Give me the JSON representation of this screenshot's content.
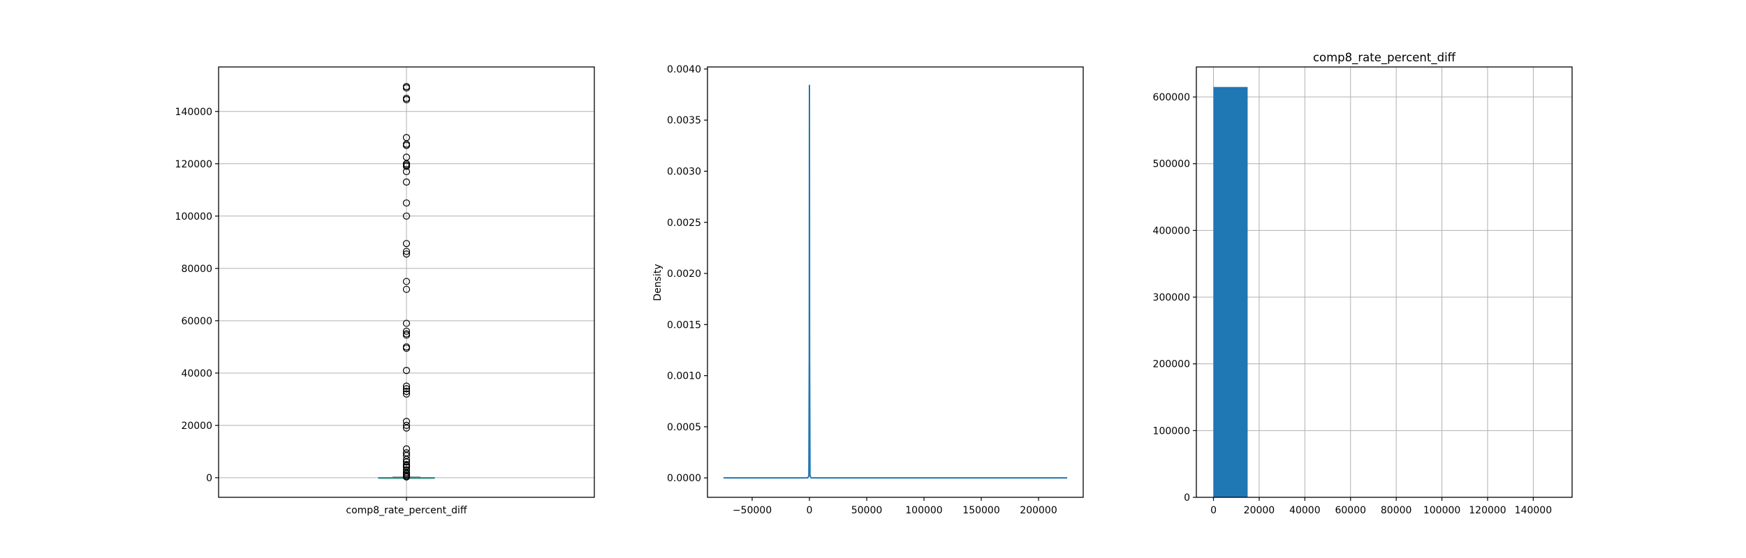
{
  "chart_data": [
    {
      "type": "box",
      "title": "",
      "xlabel": "",
      "ylabel": "",
      "categories": [
        "comp8_rate_percent_diff"
      ],
      "ylim": [
        -7500,
        157000
      ],
      "yticks": [
        0,
        20000,
        40000,
        60000,
        80000,
        100000,
        120000,
        140000
      ],
      "ytick_labels": [
        "0",
        "20000",
        "40000",
        "60000",
        "80000",
        "100000",
        "120000",
        "140000"
      ],
      "grid": true,
      "box": {
        "q1": -20,
        "median": 0,
        "q3": 20,
        "whisker_low": -180,
        "whisker_high": 180
      },
      "outliers": [
        149500,
        149000,
        145000,
        144500,
        130000,
        127500,
        127000,
        122500,
        120000,
        119500,
        119000,
        117000,
        113000,
        105000,
        100000,
        89500,
        86500,
        85500,
        75000,
        72000,
        59000,
        56000,
        55000,
        54500,
        50000,
        49500,
        41000,
        35000,
        34000,
        33000,
        32000,
        21500,
        20000,
        19000,
        11000,
        9500,
        8500,
        7000,
        6000,
        5000,
        4500,
        4000,
        3000,
        2000,
        1500,
        1000,
        500,
        300
      ],
      "colors": {
        "median": "#2ca02c",
        "box": "#1f77b4",
        "outlier": "#000000"
      }
    },
    {
      "type": "line",
      "title": "",
      "xlabel": "",
      "ylabel": "Density",
      "xlim": [
        -89000,
        239000
      ],
      "ylim": [
        -0.00019,
        0.00402
      ],
      "xticks": [
        -50000,
        0,
        50000,
        100000,
        150000,
        200000
      ],
      "xtick_labels": [
        "−50000",
        "0",
        "50000",
        "100000",
        "150000",
        "200000"
      ],
      "yticks": [
        0.0,
        0.0005,
        0.001,
        0.0015,
        0.002,
        0.0025,
        0.003,
        0.0035,
        0.004
      ],
      "ytick_labels": [
        "0.0000",
        "0.0005",
        "0.0010",
        "0.0015",
        "0.0020",
        "0.0025",
        "0.0030",
        "0.0035",
        "0.0040"
      ],
      "grid": false,
      "series": [
        {
          "x": [
            -75000,
            -1500,
            -500,
            -150,
            0,
            150,
            500,
            1500,
            225000
          ],
          "y": [
            0.0,
            0.0,
            2e-05,
            0.0012,
            0.00384,
            0.0012,
            2e-05,
            0.0,
            0.0
          ],
          "color": "#1f77b4"
        }
      ]
    },
    {
      "type": "bar",
      "title": "comp8_rate_percent_diff",
      "xlabel": "",
      "ylabel": "",
      "xlim": [
        -7500,
        157000
      ],
      "ylim": [
        0,
        645000
      ],
      "xticks": [
        0,
        20000,
        40000,
        60000,
        80000,
        100000,
        120000,
        140000
      ],
      "xtick_labels": [
        "0",
        "20000",
        "40000",
        "60000",
        "80000",
        "100000",
        "120000",
        "140000"
      ],
      "yticks": [
        0,
        100000,
        200000,
        300000,
        400000,
        500000,
        600000
      ],
      "ytick_labels": [
        "0",
        "100000",
        "200000",
        "300000",
        "400000",
        "500000",
        "600000"
      ],
      "grid": true,
      "bins": [
        {
          "x0": 0,
          "x1": 14950,
          "count": 615000
        },
        {
          "x0": 14950,
          "x1": 29900,
          "count": 3
        },
        {
          "x0": 29900,
          "x1": 44850,
          "count": 5
        },
        {
          "x0": 44850,
          "x1": 59800,
          "count": 8
        },
        {
          "x0": 59800,
          "x1": 74750,
          "count": 2
        },
        {
          "x0": 74750,
          "x1": 89700,
          "count": 4
        },
        {
          "x0": 89700,
          "x1": 104650,
          "count": 2
        },
        {
          "x0": 104650,
          "x1": 119600,
          "count": 4
        },
        {
          "x0": 119600,
          "x1": 134550,
          "count": 5
        },
        {
          "x0": 134550,
          "x1": 149500,
          "count": 4
        }
      ],
      "color": "#1f77b4"
    }
  ]
}
